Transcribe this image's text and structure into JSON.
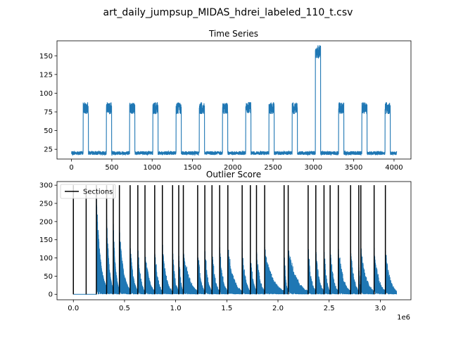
{
  "figure": {
    "suptitle": "art_daily_jumpsup_MIDAS_hdrei_labeled_110_t.csv"
  },
  "chart_data": [
    {
      "type": "line",
      "title": "Time Series",
      "xlim": [
        -180,
        4210
      ],
      "ylim": [
        12,
        170
      ],
      "xticks": [
        0,
        500,
        1000,
        1500,
        2000,
        2500,
        3000,
        3500,
        4000
      ],
      "xtick_labels": [
        "0",
        "500",
        "1000",
        "1500",
        "2000",
        "2500",
        "3000",
        "3500",
        "4000"
      ],
      "yticks": [
        25,
        50,
        75,
        100,
        125,
        150
      ],
      "ytick_labels": [
        "25",
        "50",
        "75",
        "100",
        "125",
        "150"
      ],
      "color": "#1f77b4",
      "baseline": 20,
      "plateau": 80,
      "jump_plateau": 155,
      "jump_period": [
        2995,
        3095
      ],
      "period": 288,
      "high_window": [
        145,
        210
      ],
      "x_end": 4032
    },
    {
      "type": "line",
      "title": "Outlier Score",
      "xlim": [
        -160000,
        3300000
      ],
      "ylim": [
        -15,
        310
      ],
      "xticks": [
        0,
        500000,
        1000000,
        1500000,
        2000000,
        2500000,
        3000000
      ],
      "xtick_labels": [
        "0.0",
        "0.5",
        "1.0",
        "1.5",
        "2.0",
        "2.5",
        "3.0"
      ],
      "x_scale_label": "1e6",
      "yticks": [
        0,
        50,
        100,
        150,
        200,
        250,
        300
      ],
      "ytick_labels": [
        "0",
        "50",
        "100",
        "150",
        "200",
        "250",
        "300"
      ],
      "color": "#1f77b4",
      "sections_color": "#000000",
      "legend": {
        "label": "Sections",
        "location": "upper-left"
      },
      "sections": [
        0,
        125000,
        225000,
        325000,
        390000,
        450000,
        555000,
        630000,
        700000,
        795000,
        870000,
        970000,
        1030000,
        1075000,
        1215000,
        1285000,
        1355000,
        1430000,
        1510000,
        1650000,
        1730000,
        1790000,
        1870000,
        2060000,
        2100000,
        2295000,
        2370000,
        2450000,
        2510000,
        2590000,
        2710000,
        2790000,
        2810000,
        2940000,
        3050000
      ],
      "score_start": 225000,
      "score_end": 3160000,
      "initial_peak": 290
    }
  ]
}
